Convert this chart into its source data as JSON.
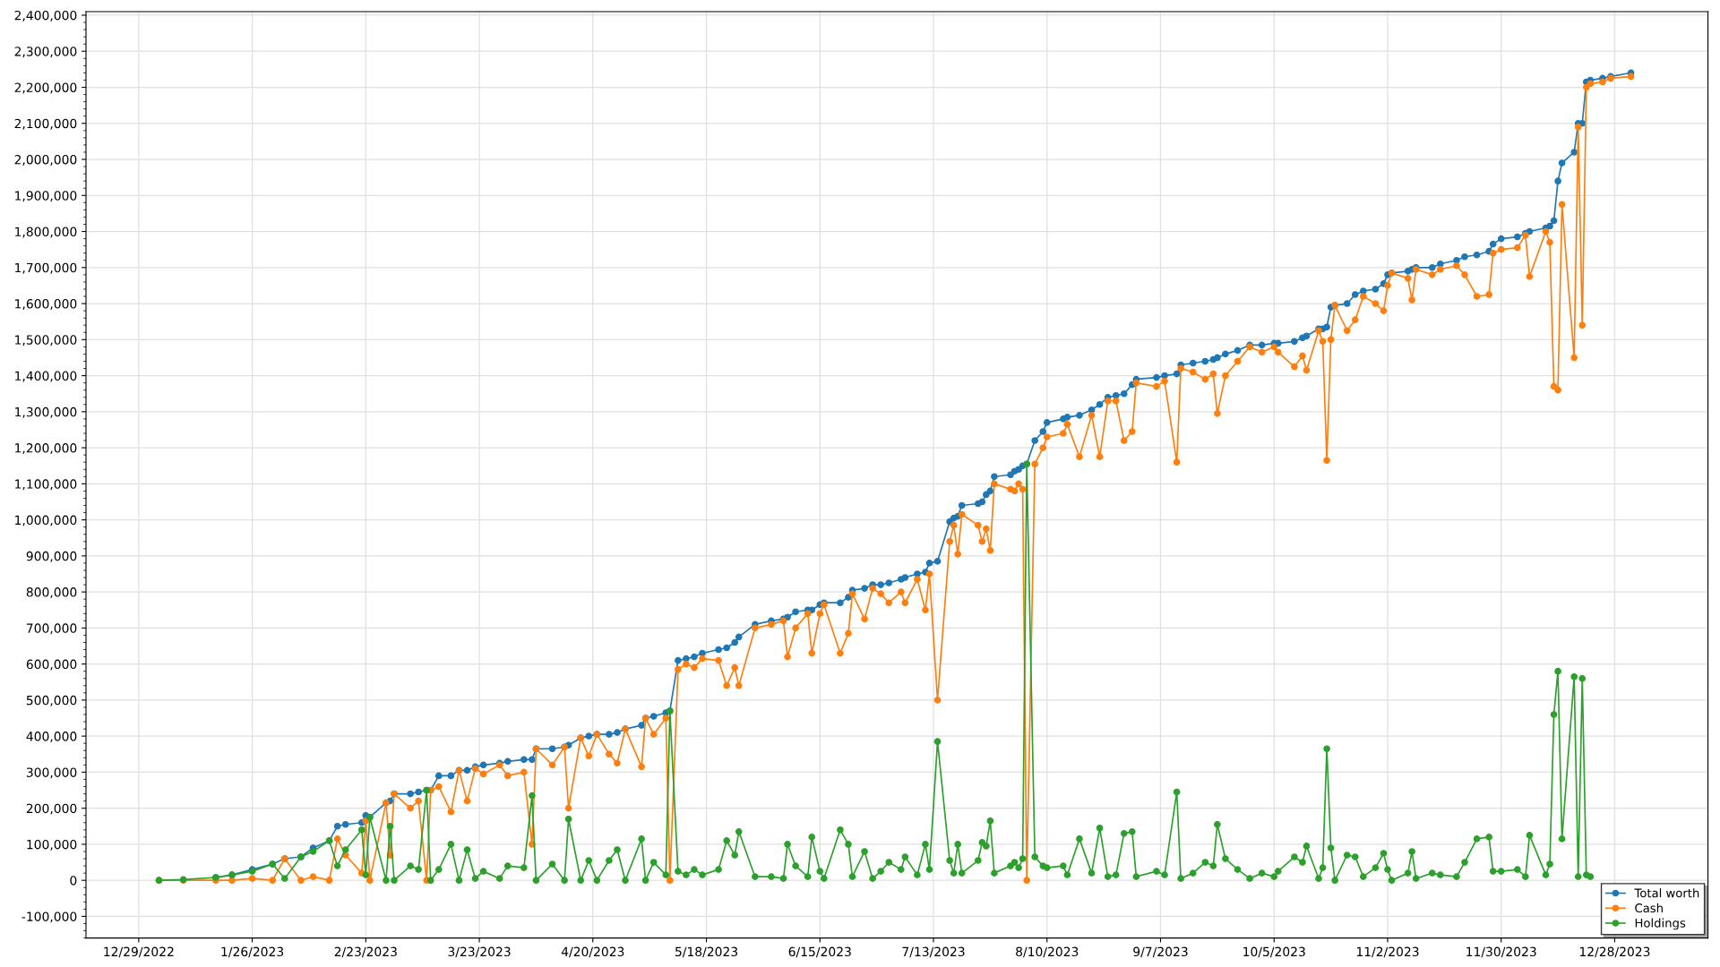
{
  "chart_data": {
    "type": "line",
    "marker": "circle",
    "line_style": "solid",
    "grid": true,
    "legend": "bottom right",
    "xlim": [
      "2022-12-16",
      "2024-01-20"
    ],
    "xticks": [
      {
        "value": "2022-12-29",
        "label": "12/29/2022"
      },
      {
        "value": "2023-01-26",
        "label": "1/26/2023"
      },
      {
        "value": "2023-02-23",
        "label": "2/23/2023"
      },
      {
        "value": "2023-03-23",
        "label": "3/23/2023"
      },
      {
        "value": "2023-04-20",
        "label": "4/20/2023"
      },
      {
        "value": "2023-05-18",
        "label": "5/18/2023"
      },
      {
        "value": "2023-06-15",
        "label": "6/15/2023"
      },
      {
        "value": "2023-07-13",
        "label": "7/13/2023"
      },
      {
        "value": "2023-08-10",
        "label": "8/10/2023"
      },
      {
        "value": "2023-09-07",
        "label": "9/7/2023"
      },
      {
        "value": "2023-10-05",
        "label": "10/5/2023"
      },
      {
        "value": "2023-11-02",
        "label": "11/2/2023"
      },
      {
        "value": "2023-11-30",
        "label": "11/30/2023"
      },
      {
        "value": "2023-12-28",
        "label": "12/28/2023"
      }
    ],
    "ylim": [
      -160000,
      2410000
    ],
    "yticks": [
      {
        "value": -100000,
        "label": "-100,000"
      },
      0,
      {
        "value": 100000,
        "label": "100,000"
      },
      {
        "value": 200000,
        "label": "200,000"
      },
      {
        "value": 300000,
        "label": "300,000"
      },
      {
        "value": 400000,
        "label": "400,000"
      },
      {
        "value": 500000,
        "label": "500,000"
      },
      {
        "value": 600000,
        "label": "600,000"
      },
      {
        "value": 700000,
        "label": "700,000"
      },
      {
        "value": 800000,
        "label": "800,000"
      },
      {
        "value": 900000,
        "label": "900,000"
      },
      {
        "value": 1000000,
        "label": "1,000,000"
      },
      {
        "value": 1100000,
        "label": "1,100,000"
      },
      {
        "value": 1200000,
        "label": "1,200,000"
      },
      {
        "value": 1300000,
        "label": "1,300,000"
      },
      {
        "value": 1400000,
        "label": "1,400,000"
      },
      {
        "value": 1500000,
        "label": "1,500,000"
      },
      {
        "value": 1600000,
        "label": "1,600,000"
      },
      {
        "value": 1700000,
        "label": "1,700,000"
      },
      {
        "value": 1800000,
        "label": "1,800,000"
      },
      {
        "value": 1900000,
        "label": "1,900,000"
      },
      {
        "value": 2000000,
        "label": "2,000,000"
      },
      {
        "value": 2100000,
        "label": "2,100,000"
      },
      {
        "value": 2200000,
        "label": "2,200,000"
      },
      {
        "value": 2300000,
        "label": "2,300,000"
      },
      {
        "value": 2400000,
        "label": "2,400,000"
      }
    ],
    "x": [
      "2023-01-03",
      "2023-01-09",
      "2023-01-17",
      "2023-01-21",
      "2023-01-26",
      "2023-01-31",
      "2023-02-03",
      "2023-02-07",
      "2023-02-10",
      "2023-02-14",
      "2023-02-16",
      "2023-02-18",
      "2023-02-22",
      "2023-02-23",
      "2023-02-24",
      "2023-02-28",
      "2023-03-01",
      "2023-03-02",
      "2023-03-06",
      "2023-03-08",
      "2023-03-10",
      "2023-03-11",
      "2023-03-13",
      "2023-03-16",
      "2023-03-18",
      "2023-03-20",
      "2023-03-22",
      "2023-03-24",
      "2023-03-28",
      "2023-03-30",
      "2023-04-03",
      "2023-04-05",
      "2023-04-06",
      "2023-04-10",
      "2023-04-13",
      "2023-04-14",
      "2023-04-17",
      "2023-04-19",
      "2023-04-21",
      "2023-04-24",
      "2023-04-26",
      "2023-04-28",
      "2023-05-02",
      "2023-05-03",
      "2023-05-05",
      "2023-05-08",
      "2023-05-09",
      "2023-05-11",
      "2023-05-13",
      "2023-05-15",
      "2023-05-17",
      "2023-05-21",
      "2023-05-23",
      "2023-05-25",
      "2023-05-26",
      "2023-05-30",
      "2023-06-03",
      "2023-06-06",
      "2023-06-07",
      "2023-06-09",
      "2023-06-12",
      "2023-06-13",
      "2023-06-15",
      "2023-06-16",
      "2023-06-20",
      "2023-06-22",
      "2023-06-23",
      "2023-06-26",
      "2023-06-28",
      "2023-06-30",
      "2023-07-02",
      "2023-07-05",
      "2023-07-06",
      "2023-07-09",
      "2023-07-11",
      "2023-07-12",
      "2023-07-14",
      "2023-07-17",
      "2023-07-18",
      "2023-07-19",
      "2023-07-20",
      "2023-07-24",
      "2023-07-25",
      "2023-07-26",
      "2023-07-27",
      "2023-07-28",
      "2023-08-01",
      "2023-08-02",
      "2023-08-03",
      "2023-08-04",
      "2023-08-05",
      "2023-08-07",
      "2023-08-09",
      "2023-08-10",
      "2023-08-14",
      "2023-08-15",
      "2023-08-18",
      "2023-08-21",
      "2023-08-23",
      "2023-08-25",
      "2023-08-27",
      "2023-08-29",
      "2023-08-31",
      "2023-09-01",
      "2023-09-06",
      "2023-09-08",
      "2023-09-11",
      "2023-09-12",
      "2023-09-15",
      "2023-09-18",
      "2023-09-20",
      "2023-09-21",
      "2023-09-23",
      "2023-09-26",
      "2023-09-29",
      "2023-10-02",
      "2023-10-05",
      "2023-10-06",
      "2023-10-10",
      "2023-10-12",
      "2023-10-13",
      "2023-10-16",
      "2023-10-17",
      "2023-10-18",
      "2023-10-19",
      "2023-10-20",
      "2023-10-23",
      "2023-10-25",
      "2023-10-27",
      "2023-10-30",
      "2023-11-01",
      "2023-11-02",
      "2023-11-03",
      "2023-11-07",
      "2023-11-08",
      "2023-11-09",
      "2023-11-13",
      "2023-11-15",
      "2023-11-19",
      "2023-11-21",
      "2023-11-24",
      "2023-11-27",
      "2023-11-28",
      "2023-11-30",
      "2023-12-04",
      "2023-12-06",
      "2023-12-07",
      "2023-12-11",
      "2023-12-12",
      "2023-12-13",
      "2023-12-14",
      "2023-12-15",
      "2023-12-18",
      "2023-12-19",
      "2023-12-20",
      "2023-12-21",
      "2023-12-22",
      "2023-12-25",
      "2023-12-27",
      "2024-01-01"
    ],
    "series": [
      {
        "name": "Total worth",
        "color": "#1f77b4",
        "values": [
          null,
          null,
          8000,
          15000,
          30000,
          45000,
          60000,
          65000,
          90000,
          110000,
          150000,
          155000,
          160000,
          180000,
          175000,
          215000,
          220000,
          240000,
          240000,
          245000,
          250000,
          250000,
          290000,
          290000,
          305000,
          305000,
          315000,
          320000,
          325000,
          330000,
          335000,
          335000,
          365000,
          365000,
          370000,
          375000,
          395000,
          400000,
          405000,
          405000,
          410000,
          420000,
          430000,
          450000,
          455000,
          465000,
          470000,
          610000,
          615000,
          620000,
          630000,
          640000,
          645000,
          660000,
          675000,
          710000,
          720000,
          725000,
          730000,
          745000,
          750000,
          750000,
          765000,
          770000,
          770000,
          785000,
          805000,
          810000,
          820000,
          820000,
          825000,
          835000,
          840000,
          850000,
          855000,
          880000,
          885000,
          995000,
          1005000,
          1010000,
          1040000,
          1045000,
          1050000,
          1070000,
          1080000,
          1120000,
          1125000,
          1135000,
          1140000,
          1150000,
          1155000,
          1220000,
          1245000,
          1270000,
          1280000,
          1285000,
          1290000,
          1305000,
          1320000,
          1340000,
          1345000,
          1350000,
          1375000,
          1390000,
          1395000,
          1400000,
          1405000,
          1430000,
          1435000,
          1440000,
          1445000,
          1450000,
          1460000,
          1470000,
          1485000,
          1485000,
          1490000,
          1490000,
          1495000,
          1505000,
          1510000,
          1530000,
          1530000,
          1535000,
          1590000,
          1595000,
          1600000,
          1625000,
          1635000,
          1640000,
          1655000,
          1680000,
          1685000,
          1690000,
          1695000,
          1700000,
          1700000,
          1710000,
          1720000,
          1730000,
          1735000,
          1745000,
          1765000,
          1780000,
          1785000,
          1795000,
          1800000,
          1810000,
          1815000,
          1830000,
          1940000,
          1990000,
          2020000,
          2100000,
          2100000,
          2215000,
          2220000,
          2225000,
          2230000,
          2240000
        ]
      },
      {
        "name": "Cash",
        "color": "#ff7f0e",
        "values": [
          0,
          0,
          0,
          0,
          5000,
          0,
          60000,
          0,
          10000,
          0,
          115000,
          70000,
          20000,
          165000,
          0,
          215000,
          70000,
          240000,
          200000,
          220000,
          0,
          250000,
          260000,
          190000,
          305000,
          220000,
          310000,
          295000,
          320000,
          290000,
          300000,
          100000,
          365000,
          320000,
          370000,
          200000,
          395000,
          345000,
          405000,
          350000,
          325000,
          420000,
          315000,
          450000,
          405000,
          450000,
          0,
          585000,
          600000,
          590000,
          615000,
          610000,
          540000,
          590000,
          540000,
          700000,
          710000,
          720000,
          620000,
          700000,
          740000,
          630000,
          740000,
          765000,
          630000,
          685000,
          795000,
          725000,
          810000,
          795000,
          770000,
          800000,
          770000,
          835000,
          750000,
          850000,
          500000,
          940000,
          985000,
          905000,
          1015000,
          985000,
          940000,
          975000,
          915000,
          1100000,
          1085000,
          1080000,
          1100000,
          1085000,
          0,
          1155000,
          1200000,
          1230000,
          1240000,
          1265000,
          1175000,
          1290000,
          1175000,
          1330000,
          1330000,
          1220000,
          1245000,
          1380000,
          1370000,
          1385000,
          1160000,
          1420000,
          1410000,
          1390000,
          1405000,
          1295000,
          1400000,
          1440000,
          1480000,
          1465000,
          1480000,
          1465000,
          1425000,
          1455000,
          1415000,
          1525000,
          1495000,
          1165000,
          1500000,
          1595000,
          1525000,
          1555000,
          1620000,
          1600000,
          1580000,
          1650000,
          1685000,
          1670000,
          1610000,
          1695000,
          1680000,
          1695000,
          1705000,
          1680000,
          1620000,
          1625000,
          1740000,
          1750000,
          1755000,
          1790000,
          1675000,
          1800000,
          1770000,
          1370000,
          1360000,
          1875000,
          1450000,
          2090000,
          1540000,
          2200000,
          2210000,
          2215000,
          2225000,
          2230000
        ]
      },
      {
        "name": "Holdings",
        "color": "#2ca02c",
        "values": [
          0,
          2000,
          8000,
          15000,
          25000,
          45000,
          5000,
          65000,
          80000,
          110000,
          40000,
          85000,
          140000,
          15000,
          175000,
          0,
          150000,
          0,
          40000,
          30000,
          250000,
          0,
          30000,
          100000,
          0,
          85000,
          5000,
          25000,
          5000,
          40000,
          35000,
          235000,
          0,
          45000,
          0,
          170000,
          0,
          55000,
          0,
          55000,
          85000,
          0,
          115000,
          0,
          50000,
          15000,
          470000,
          25000,
          15000,
          30000,
          15000,
          30000,
          110000,
          70000,
          135000,
          10000,
          10000,
          5000,
          100000,
          40000,
          10000,
          120000,
          25000,
          5000,
          140000,
          100000,
          10000,
          80000,
          5000,
          25000,
          50000,
          30000,
          65000,
          15000,
          100000,
          30000,
          385000,
          55000,
          20000,
          100000,
          20000,
          55000,
          105000,
          95000,
          165000,
          20000,
          40000,
          50000,
          35000,
          60000,
          1155000,
          65000,
          40000,
          35000,
          40000,
          15000,
          115000,
          20000,
          145000,
          10000,
          15000,
          130000,
          135000,
          10000,
          25000,
          15000,
          245000,
          5000,
          20000,
          50000,
          40000,
          155000,
          60000,
          30000,
          5000,
          20000,
          10000,
          25000,
          65000,
          50000,
          95000,
          5000,
          35000,
          365000,
          90000,
          0,
          70000,
          65000,
          10000,
          35000,
          75000,
          30000,
          0,
          20000,
          80000,
          5000,
          20000,
          15000,
          10000,
          50000,
          115000,
          120000,
          25000,
          25000,
          30000,
          10000,
          125000,
          15000,
          45000,
          460000,
          580000,
          115000,
          565000,
          10000,
          560000,
          15000,
          10000,
          null,
          null,
          null
        ]
      }
    ]
  }
}
